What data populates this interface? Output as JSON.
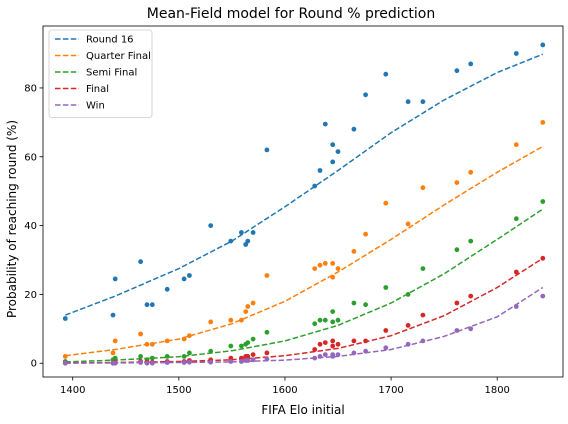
{
  "chart_data": {
    "type": "scatter",
    "title": "Mean-Field model for Round % prediction",
    "xlabel": "FIFA Elo initial",
    "ylabel": "Probability of reaching round (%)",
    "xlim": [
      1372,
      1862
    ],
    "ylim": [
      -4,
      98
    ],
    "xticks": [
      1400,
      1500,
      1600,
      1700,
      1800
    ],
    "yticks": [
      0,
      20,
      40,
      60,
      80
    ],
    "grid": false,
    "legend_position": "top-left",
    "series": [
      {
        "name": "Round 16",
        "color": "#1f77b4",
        "curve": [
          [
            1393,
            14.0
          ],
          [
            1440,
            19.5
          ],
          [
            1500,
            27.5
          ],
          [
            1550,
            35.5
          ],
          [
            1600,
            45.5
          ],
          [
            1650,
            56.0
          ],
          [
            1700,
            67.0
          ],
          [
            1750,
            76.5
          ],
          [
            1800,
            84.5
          ],
          [
            1843,
            89.8
          ]
        ],
        "points": [
          [
            1393,
            13
          ],
          [
            1438,
            14
          ],
          [
            1440,
            24.5
          ],
          [
            1464,
            29.5
          ],
          [
            1470,
            17
          ],
          [
            1475,
            17
          ],
          [
            1489,
            21.5
          ],
          [
            1505,
            24.5
          ],
          [
            1510,
            25.5
          ],
          [
            1530,
            40
          ],
          [
            1549,
            35.5
          ],
          [
            1559,
            38
          ],
          [
            1563,
            34.5
          ],
          [
            1565,
            35.5
          ],
          [
            1570,
            38
          ],
          [
            1583,
            62
          ],
          [
            1628,
            51.5
          ],
          [
            1633,
            56
          ],
          [
            1638,
            69.5
          ],
          [
            1645,
            63.5
          ],
          [
            1645,
            58.5
          ],
          [
            1650,
            61.5
          ],
          [
            1665,
            68
          ],
          [
            1676,
            78
          ],
          [
            1695,
            84
          ],
          [
            1716,
            76
          ],
          [
            1730,
            76
          ],
          [
            1762,
            85
          ],
          [
            1775,
            87
          ],
          [
            1818,
            90
          ],
          [
            1843,
            92.5
          ]
        ]
      },
      {
        "name": "Quarter Final",
        "color": "#ff7f0e",
        "curve": [
          [
            1393,
            2.2
          ],
          [
            1440,
            4.0
          ],
          [
            1500,
            7.0
          ],
          [
            1550,
            11.5
          ],
          [
            1600,
            18.0
          ],
          [
            1650,
            26.5
          ],
          [
            1700,
            36.0
          ],
          [
            1750,
            46.0
          ],
          [
            1800,
            55.5
          ],
          [
            1843,
            63.0
          ]
        ],
        "points": [
          [
            1393,
            2
          ],
          [
            1438,
            3
          ],
          [
            1440,
            6.5
          ],
          [
            1464,
            8.5
          ],
          [
            1470,
            5.5
          ],
          [
            1475,
            5.5
          ],
          [
            1489,
            6.5
          ],
          [
            1505,
            7
          ],
          [
            1510,
            8
          ],
          [
            1530,
            12
          ],
          [
            1549,
            12.5
          ],
          [
            1559,
            12.5
          ],
          [
            1563,
            15
          ],
          [
            1565,
            16.5
          ],
          [
            1570,
            17.5
          ],
          [
            1583,
            25.5
          ],
          [
            1628,
            27.5
          ],
          [
            1633,
            28.5
          ],
          [
            1638,
            29
          ],
          [
            1645,
            25
          ],
          [
            1645,
            29
          ],
          [
            1650,
            27.5
          ],
          [
            1665,
            32.5
          ],
          [
            1676,
            37.5
          ],
          [
            1695,
            46.5
          ],
          [
            1716,
            40.5
          ],
          [
            1730,
            51
          ],
          [
            1762,
            52.5
          ],
          [
            1775,
            55.5
          ],
          [
            1818,
            63.5
          ],
          [
            1843,
            70
          ]
        ]
      },
      {
        "name": "Semi Final",
        "color": "#2ca02c",
        "curve": [
          [
            1393,
            0.4
          ],
          [
            1440,
            0.9
          ],
          [
            1500,
            1.9
          ],
          [
            1550,
            3.6
          ],
          [
            1600,
            6.5
          ],
          [
            1650,
            11.0
          ],
          [
            1700,
            17.5
          ],
          [
            1750,
            26.0
          ],
          [
            1800,
            36.0
          ],
          [
            1843,
            44.8
          ]
        ],
        "points": [
          [
            1393,
            0.5
          ],
          [
            1438,
            1
          ],
          [
            1440,
            1.5
          ],
          [
            1464,
            2
          ],
          [
            1470,
            1
          ],
          [
            1475,
            1.5
          ],
          [
            1489,
            2
          ],
          [
            1505,
            2
          ],
          [
            1510,
            3
          ],
          [
            1530,
            3.5
          ],
          [
            1549,
            5
          ],
          [
            1559,
            5
          ],
          [
            1563,
            5.5
          ],
          [
            1565,
            6
          ],
          [
            1570,
            7
          ],
          [
            1583,
            9
          ],
          [
            1628,
            11.5
          ],
          [
            1633,
            12.5
          ],
          [
            1638,
            12.5
          ],
          [
            1645,
            12
          ],
          [
            1645,
            15
          ],
          [
            1650,
            12.5
          ],
          [
            1665,
            17.5
          ],
          [
            1676,
            17
          ],
          [
            1695,
            22
          ],
          [
            1716,
            20
          ],
          [
            1730,
            27.5
          ],
          [
            1762,
            33
          ],
          [
            1775,
            35.5
          ],
          [
            1818,
            42
          ],
          [
            1843,
            47
          ]
        ]
      },
      {
        "name": "Final",
        "color": "#d62728",
        "curve": [
          [
            1393,
            0.1
          ],
          [
            1440,
            0.2
          ],
          [
            1500,
            0.5
          ],
          [
            1550,
            1.0
          ],
          [
            1600,
            2.2
          ],
          [
            1650,
            4.3
          ],
          [
            1700,
            8.0
          ],
          [
            1750,
            13.8
          ],
          [
            1800,
            22.0
          ],
          [
            1843,
            30.5
          ]
        ],
        "points": [
          [
            1393,
            0
          ],
          [
            1438,
            0
          ],
          [
            1440,
            0.3
          ],
          [
            1464,
            0.5
          ],
          [
            1470,
            0.3
          ],
          [
            1475,
            0.3
          ],
          [
            1489,
            0.5
          ],
          [
            1505,
            0.5
          ],
          [
            1510,
            0.8
          ],
          [
            1530,
            1
          ],
          [
            1549,
            1.5
          ],
          [
            1559,
            1.5
          ],
          [
            1563,
            2
          ],
          [
            1565,
            2
          ],
          [
            1570,
            2.5
          ],
          [
            1583,
            3
          ],
          [
            1628,
            4
          ],
          [
            1633,
            5.5
          ],
          [
            1638,
            6
          ],
          [
            1645,
            5
          ],
          [
            1645,
            6.5
          ],
          [
            1650,
            5.5
          ],
          [
            1665,
            6.5
          ],
          [
            1676,
            6.5
          ],
          [
            1695,
            9.5
          ],
          [
            1716,
            11
          ],
          [
            1730,
            14
          ],
          [
            1762,
            17.5
          ],
          [
            1775,
            19.5
          ],
          [
            1818,
            26.5
          ],
          [
            1843,
            30.5
          ]
        ]
      },
      {
        "name": "Win",
        "color": "#9467bd",
        "curve": [
          [
            1393,
            0.0
          ],
          [
            1440,
            0.1
          ],
          [
            1500,
            0.2
          ],
          [
            1550,
            0.4
          ],
          [
            1600,
            0.9
          ],
          [
            1650,
            2.0
          ],
          [
            1700,
            4.0
          ],
          [
            1750,
            7.8
          ],
          [
            1800,
            13.5
          ],
          [
            1843,
            22.0
          ]
        ],
        "points": [
          [
            1393,
            0
          ],
          [
            1438,
            0
          ],
          [
            1440,
            0
          ],
          [
            1464,
            0.2
          ],
          [
            1470,
            0
          ],
          [
            1475,
            0
          ],
          [
            1489,
            0.2
          ],
          [
            1505,
            0.2
          ],
          [
            1510,
            0.3
          ],
          [
            1530,
            0.3
          ],
          [
            1549,
            0.5
          ],
          [
            1559,
            0.5
          ],
          [
            1563,
            0.8
          ],
          [
            1565,
            0.8
          ],
          [
            1570,
            1
          ],
          [
            1583,
            1.2
          ],
          [
            1628,
            1.5
          ],
          [
            1633,
            2
          ],
          [
            1638,
            2.5
          ],
          [
            1645,
            2
          ],
          [
            1645,
            2.5
          ],
          [
            1650,
            2.5
          ],
          [
            1665,
            3
          ],
          [
            1676,
            3.5
          ],
          [
            1695,
            4.5
          ],
          [
            1716,
            5.5
          ],
          [
            1730,
            6.5
          ],
          [
            1762,
            9.5
          ],
          [
            1775,
            10
          ],
          [
            1818,
            16.5
          ],
          [
            1843,
            19.5
          ]
        ]
      }
    ]
  }
}
